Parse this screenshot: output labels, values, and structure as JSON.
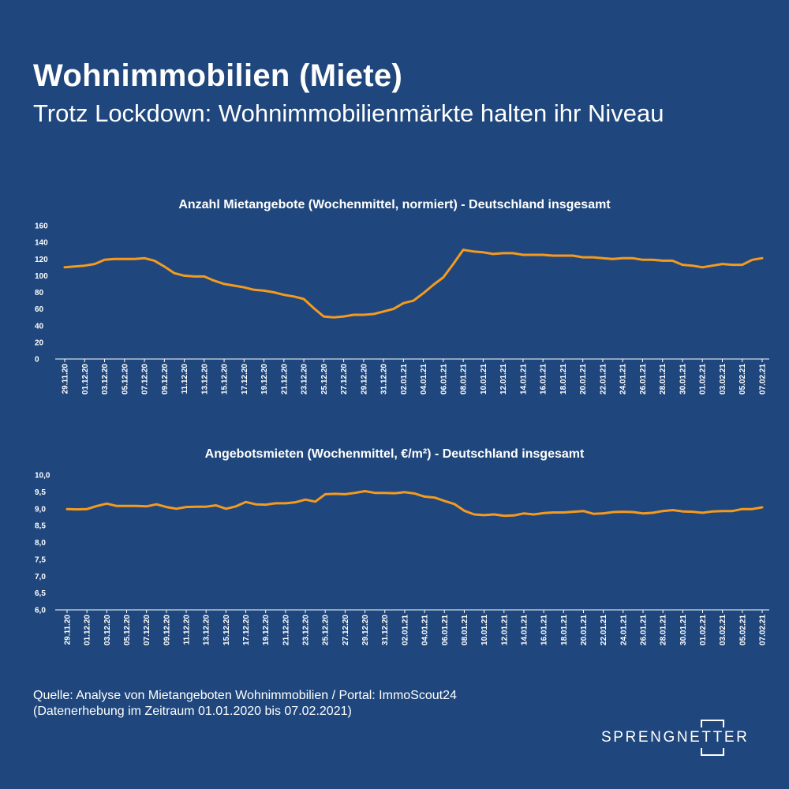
{
  "header": {
    "title": "Wohnimmobilien (Miete)",
    "subtitle": "Trotz Lockdown: Wohnimmobilienmärkte halten ihr Niveau"
  },
  "colors": {
    "background": "#1f477d",
    "line": "#f59a1f",
    "text": "#ffffff"
  },
  "chart_data": [
    {
      "type": "line",
      "title": "Anzahl Mietangebote (Wochenmittel, normiert) - Deutschland insgesamt",
      "xlabel": "",
      "ylabel": "",
      "ylim": [
        0,
        160
      ],
      "yticks": [
        "0",
        "20",
        "40",
        "60",
        "80",
        "100",
        "120",
        "140",
        "160"
      ],
      "xtick_labels": [
        "29.11.20",
        "01.12.20",
        "03.12.20",
        "05.12.20",
        "07.12.20",
        "09.12.20",
        "11.12.20",
        "13.12.20",
        "15.12.20",
        "17.12.20",
        "19.12.20",
        "21.12.20",
        "23.12.20",
        "25.12.20",
        "27.12.20",
        "29.12.20",
        "31.12.20",
        "02.01.21",
        "04.01.21",
        "06.01.21",
        "08.01.21",
        "10.01.21",
        "12.01.21",
        "14.01.21",
        "16.01.21",
        "18.01.21",
        "20.01.21",
        "22.01.21",
        "24.01.21",
        "26.01.21",
        "28.01.21",
        "30.01.21",
        "01.02.21",
        "03.02.21",
        "05.02.21",
        "07.02.21"
      ],
      "values": [
        110,
        111,
        112,
        114,
        119,
        120,
        120,
        120,
        121,
        118,
        111,
        103,
        100,
        99,
        99,
        94,
        90,
        88,
        86,
        83,
        82,
        80,
        77,
        75,
        72,
        61,
        51,
        50,
        51,
        53,
        53,
        54,
        57,
        60,
        67,
        70,
        79,
        89,
        98,
        114,
        131,
        129,
        128,
        126,
        127,
        127,
        125,
        125,
        125,
        124,
        124,
        124,
        122,
        122,
        121,
        120,
        121,
        121,
        119,
        119,
        118,
        118,
        113,
        112,
        110,
        112,
        114,
        113,
        113,
        119,
        121
      ]
    },
    {
      "type": "line",
      "title": "Angebotsmieten (Wochenmittel, €/m²) - Deutschland insgesamt",
      "xlabel": "",
      "ylabel": "",
      "ylim": [
        6.0,
        10.0
      ],
      "yticks": [
        "6,0",
        "6,5",
        "7,0",
        "7,5",
        "8,0",
        "8,5",
        "9,0",
        "9,5",
        "10,0"
      ],
      "xtick_labels": [
        "29.11.20",
        "01.12.20",
        "03.12.20",
        "05.12.20",
        "07.12.20",
        "09.12.20",
        "11.12.20",
        "13.12.20",
        "15.12.20",
        "17.12.20",
        "19.12.20",
        "21.12.20",
        "23.12.20",
        "25.12.20",
        "27.12.20",
        "29.12.20",
        "31.12.20",
        "02.01.21",
        "04.01.21",
        "06.01.21",
        "08.01.21",
        "10.01.21",
        "12.01.21",
        "14.01.21",
        "16.01.21",
        "18.01.21",
        "20.01.21",
        "22.01.21",
        "24.01.21",
        "26.01.21",
        "28.01.21",
        "30.01.21",
        "01.02.21",
        "03.02.21",
        "05.02.21",
        "07.02.21"
      ],
      "values": [
        8.99,
        8.98,
        8.99,
        9.08,
        9.15,
        9.08,
        9.08,
        9.08,
        9.07,
        9.13,
        9.05,
        9.0,
        9.05,
        9.06,
        9.06,
        9.1,
        9.0,
        9.07,
        9.2,
        9.13,
        9.12,
        9.16,
        9.16,
        9.19,
        9.27,
        9.21,
        9.43,
        9.44,
        9.43,
        9.47,
        9.52,
        9.47,
        9.47,
        9.46,
        9.49,
        9.45,
        9.36,
        9.33,
        9.23,
        9.14,
        8.94,
        8.83,
        8.81,
        8.83,
        8.79,
        8.8,
        8.86,
        8.83,
        8.87,
        8.89,
        8.89,
        8.91,
        8.93,
        8.85,
        8.86,
        8.9,
        8.91,
        8.9,
        8.86,
        8.88,
        8.93,
        8.96,
        8.92,
        8.91,
        8.88,
        8.92,
        8.93,
        8.93,
        8.99,
        8.99,
        9.04
      ]
    }
  ],
  "footer": {
    "source_line1": "Quelle: Analyse von Mietangeboten Wohnimmobilien / Portal: ImmoScout24",
    "source_line2": "(Datenerhebung im Zeitraum 01.01.2020 bis  07.02.2021)",
    "brand": "SPRENGNETTER"
  }
}
